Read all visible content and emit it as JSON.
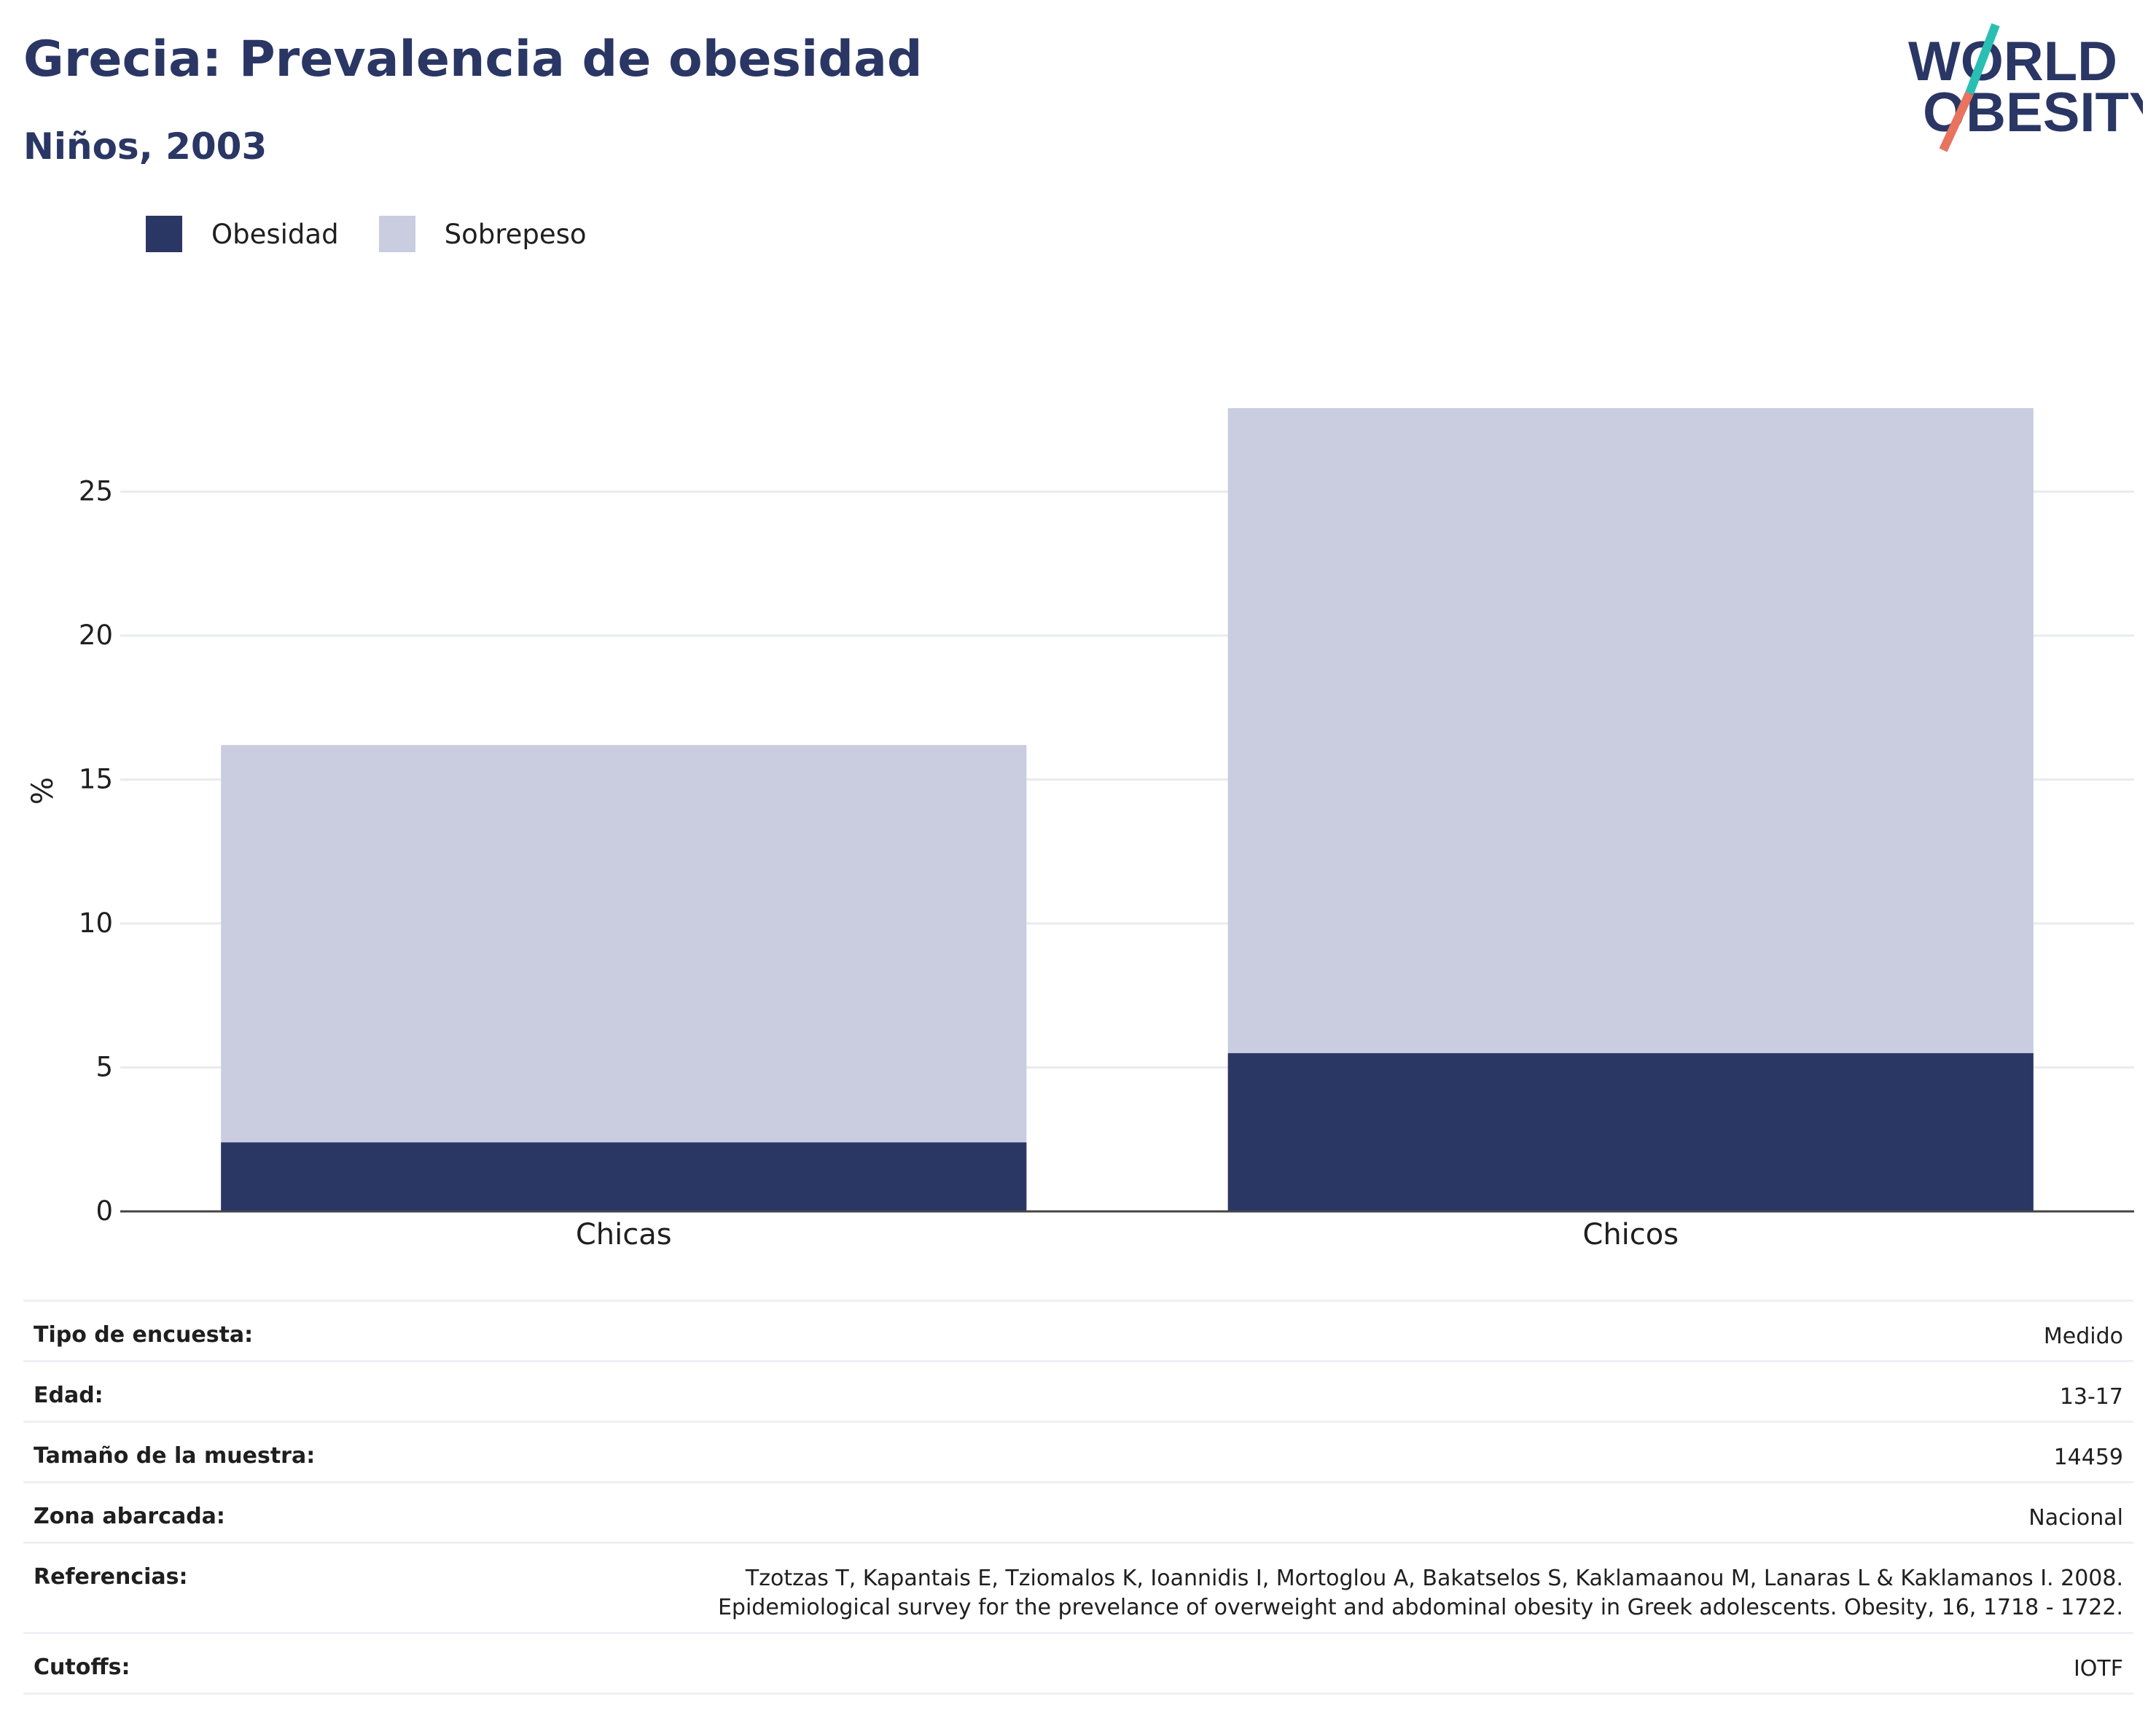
{
  "header": {
    "title": "Grecia: Prevalencia de obesidad",
    "subtitle": "Niños, 2003"
  },
  "logo": {
    "line1": "WORLD",
    "line2": "OBESITY"
  },
  "colors": {
    "obesidad": "#2a3664",
    "sobrepeso": "#cacce0",
    "text_dark": "#2a3664",
    "logo_teal": "#2bbfb4",
    "logo_coral": "#e8735f"
  },
  "chart_data": {
    "type": "bar",
    "stacked": true,
    "categories": [
      "Chicas",
      "Chicos"
    ],
    "series": [
      {
        "name": "Obesidad",
        "values": [
          2.4,
          5.5
        ]
      },
      {
        "name": "Sobrepeso",
        "values": [
          13.8,
          22.4
        ]
      }
    ],
    "ylabel": "%",
    "yticks": [
      0,
      5,
      10,
      15,
      20,
      25
    ],
    "ylim": [
      0,
      28
    ],
    "grid": true,
    "legend": "top-left"
  },
  "meta": {
    "rows": [
      {
        "key": "Tipo de encuesta:",
        "value": "Medido"
      },
      {
        "key": "Edad:",
        "value": "13-17"
      },
      {
        "key": "Tamaño de la muestra:",
        "value": "14459"
      },
      {
        "key": "Zona abarcada:",
        "value": "Nacional"
      },
      {
        "key": "Referencias:",
        "value": "Tzotzas T, Kapantais E, Tziomalos K, Ioannidis I, Mortoglou A, Bakatselos S, Kaklamaanou M, Lanaras L & Kaklamanos I. 2008.",
        "value2": "Epidemiological survey for the prevelance of overweight and abdominal obesity in Greek adolescents. Obesity, 16, 1718 - 1722."
      },
      {
        "key": "Cutoffs:",
        "value": "IOTF"
      }
    ]
  }
}
